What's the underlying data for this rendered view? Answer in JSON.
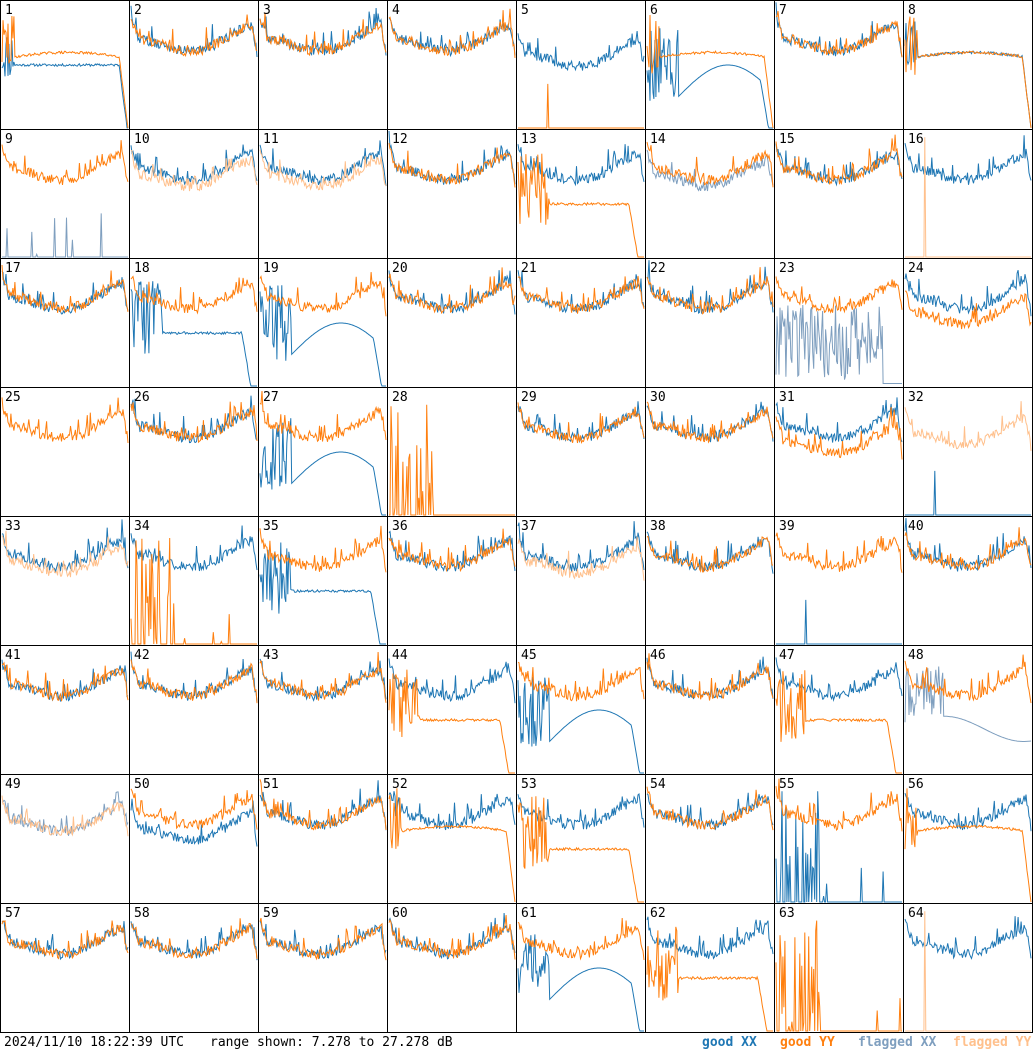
{
  "footer": {
    "timestamp": "2024/11/10 18:22:39 UTC",
    "range_text": "range shown: 7.278 to 27.278 dB"
  },
  "legend": [
    {
      "name": "good XX",
      "color": "#1f77b4"
    },
    {
      "name": "good YY",
      "color": "#ff7f0e"
    },
    {
      "name": "flagged XX",
      "color": "#7f9fbf"
    },
    {
      "name": "flagged YY",
      "color": "#ffc08c"
    }
  ],
  "colors": {
    "good_xx": "#1f77b4",
    "good_yy": "#ff7f0e",
    "flagged_xx": "#7f9fbf",
    "flagged_yy": "#ffc08c"
  },
  "chart_data": {
    "type": "line",
    "description_layout": "8x8 grid of per-tile spectra, y range 7.278 to 27.278 dB",
    "ylim": [
      7.278,
      27.278
    ],
    "series_names": [
      "good XX",
      "good YY",
      "flagged XX",
      "flagged YY"
    ],
    "panels": [
      {
        "id": "1",
        "xx": "hump_low",
        "yy": "hump"
      },
      {
        "id": "2",
        "xx": "normal",
        "yy": "normal"
      },
      {
        "id": "3",
        "xx": "normal",
        "yy": "normal"
      },
      {
        "id": "4",
        "xx": "normal",
        "yy": "normal"
      },
      {
        "id": "5",
        "xx": "normal_low",
        "yy": "spike"
      },
      {
        "id": "6",
        "xx": "wave",
        "yy": "hump"
      },
      {
        "id": "7",
        "xx": "normal",
        "yy": "normal"
      },
      {
        "id": "8",
        "xx": "hump",
        "yy": "hump"
      },
      {
        "id": "9",
        "xx": "flag_spikes",
        "yy": "normal"
      },
      {
        "id": "10",
        "xx": "normal",
        "yy": "flag_normal"
      },
      {
        "id": "11",
        "xx": "normal",
        "yy": "flag_normal"
      },
      {
        "id": "12",
        "xx": "normal",
        "yy": "normal"
      },
      {
        "id": "13",
        "xx": "normal",
        "yy": "hump_drop"
      },
      {
        "id": "14",
        "xx": "flag_normal",
        "yy": "normal"
      },
      {
        "id": "15",
        "xx": "normal",
        "yy": "normal"
      },
      {
        "id": "16",
        "xx": "normal",
        "yy": "flag_spike"
      },
      {
        "id": "17",
        "xx": "normal",
        "yy": "normal"
      },
      {
        "id": "18",
        "xx": "hump_drop",
        "yy": "normal"
      },
      {
        "id": "19",
        "xx": "wave",
        "yy": "normal"
      },
      {
        "id": "20",
        "xx": "normal",
        "yy": "normal"
      },
      {
        "id": "21",
        "xx": "normal",
        "yy": "normal"
      },
      {
        "id": "22",
        "xx": "normal",
        "yy": "normal"
      },
      {
        "id": "23",
        "xx": "flag_noise",
        "yy": "normal"
      },
      {
        "id": "24",
        "xx": "normal",
        "yy": "normal_low"
      },
      {
        "id": "25",
        "xx": "none",
        "yy": "normal"
      },
      {
        "id": "26",
        "xx": "normal",
        "yy": "normal"
      },
      {
        "id": "27",
        "xx": "wave",
        "yy": "normal"
      },
      {
        "id": "28",
        "xx": "none",
        "yy": "spikes"
      },
      {
        "id": "29",
        "xx": "normal",
        "yy": "normal"
      },
      {
        "id": "30",
        "xx": "normal",
        "yy": "normal"
      },
      {
        "id": "31",
        "xx": "normal",
        "yy": "normal_low"
      },
      {
        "id": "32",
        "xx": "spike",
        "yy": "flag_normal"
      },
      {
        "id": "33",
        "xx": "normal",
        "yy": "flag_normal"
      },
      {
        "id": "34",
        "xx": "normal",
        "yy": "spikes"
      },
      {
        "id": "35",
        "xx": "hump_drop",
        "yy": "normal"
      },
      {
        "id": "36",
        "xx": "normal",
        "yy": "normal"
      },
      {
        "id": "37",
        "xx": "normal",
        "yy": "flag_normal"
      },
      {
        "id": "38",
        "xx": "normal",
        "yy": "normal"
      },
      {
        "id": "39",
        "xx": "spike",
        "yy": "normal"
      },
      {
        "id": "40",
        "xx": "normal",
        "yy": "normal"
      },
      {
        "id": "41",
        "xx": "normal",
        "yy": "normal"
      },
      {
        "id": "42",
        "xx": "normal",
        "yy": "normal"
      },
      {
        "id": "43",
        "xx": "normal",
        "yy": "normal"
      },
      {
        "id": "44",
        "xx": "normal",
        "yy": "hump_drop"
      },
      {
        "id": "45",
        "xx": "wave",
        "yy": "normal"
      },
      {
        "id": "46",
        "xx": "normal",
        "yy": "normal"
      },
      {
        "id": "47",
        "xx": "normal",
        "yy": "hump_drop"
      },
      {
        "id": "48",
        "xx": "flag_wave",
        "yy": "normal"
      },
      {
        "id": "49",
        "xx": "flag_normal",
        "yy": "flag_normal"
      },
      {
        "id": "50",
        "xx": "normal_low",
        "yy": "normal"
      },
      {
        "id": "51",
        "xx": "normal",
        "yy": "normal"
      },
      {
        "id": "52",
        "xx": "normal",
        "yy": "hump"
      },
      {
        "id": "53",
        "xx": "normal",
        "yy": "hump_drop"
      },
      {
        "id": "54",
        "xx": "normal",
        "yy": "normal"
      },
      {
        "id": "55",
        "xx": "spikes",
        "yy": "normal"
      },
      {
        "id": "56",
        "xx": "normal",
        "yy": "hump"
      },
      {
        "id": "57",
        "xx": "normal",
        "yy": "normal"
      },
      {
        "id": "58",
        "xx": "normal",
        "yy": "normal"
      },
      {
        "id": "59",
        "xx": "normal",
        "yy": "normal"
      },
      {
        "id": "60",
        "xx": "normal",
        "yy": "normal"
      },
      {
        "id": "61",
        "xx": "wave",
        "yy": "normal"
      },
      {
        "id": "62",
        "xx": "normal",
        "yy": "hump_drop"
      },
      {
        "id": "63",
        "xx": "none",
        "yy": "spikes"
      },
      {
        "id": "64",
        "xx": "normal",
        "yy": "flag_spike"
      }
    ]
  }
}
